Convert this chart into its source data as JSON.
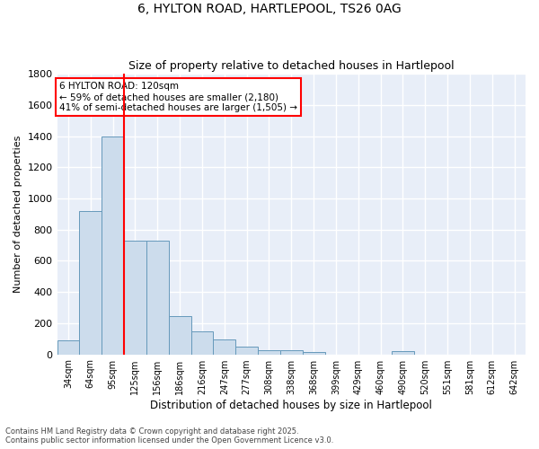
{
  "title1": "6, HYLTON ROAD, HARTLEPOOL, TS26 0AG",
  "title2": "Size of property relative to detached houses in Hartlepool",
  "xlabel": "Distribution of detached houses by size in Hartlepool",
  "ylabel": "Number of detached properties",
  "categories": [
    "34sqm",
    "64sqm",
    "95sqm",
    "125sqm",
    "156sqm",
    "186sqm",
    "216sqm",
    "247sqm",
    "277sqm",
    "308sqm",
    "338sqm",
    "368sqm",
    "399sqm",
    "429sqm",
    "460sqm",
    "490sqm",
    "520sqm",
    "551sqm",
    "581sqm",
    "612sqm",
    "642sqm"
  ],
  "values": [
    88,
    920,
    1400,
    730,
    730,
    247,
    145,
    93,
    50,
    27,
    27,
    15,
    0,
    0,
    0,
    18,
    0,
    0,
    0,
    0,
    0
  ],
  "bar_color": "#ccdcec",
  "bar_edge_color": "#6699bb",
  "vline_color": "red",
  "vline_x_index": 2.5,
  "annotation_text": "6 HYLTON ROAD: 120sqm\n← 59% of detached houses are smaller (2,180)\n41% of semi-detached houses are larger (1,505) →",
  "annotation_box_color": "white",
  "annotation_box_edge": "red",
  "ylim": [
    0,
    1800
  ],
  "yticks": [
    0,
    200,
    400,
    600,
    800,
    1000,
    1200,
    1400,
    1600,
    1800
  ],
  "bg_color": "#e8eef8",
  "grid_color": "white",
  "footer1": "Contains HM Land Registry data © Crown copyright and database right 2025.",
  "footer2": "Contains public sector information licensed under the Open Government Licence v3.0."
}
